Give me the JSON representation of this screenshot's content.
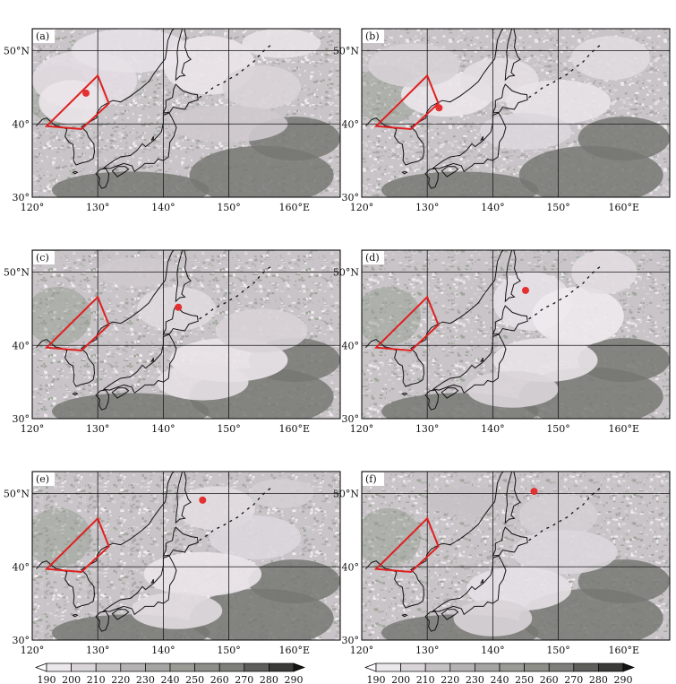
{
  "figure": {
    "lon_ticks": [
      "120°",
      "130°",
      "140°",
      "150°",
      "160°E"
    ],
    "lat_ticks": [
      "30°",
      "40°",
      "50°N"
    ],
    "panels": [
      {
        "label": "(a)",
        "storm_center": {
          "lon": 128.2,
          "lat": 44.2
        }
      },
      {
        "label": "(b)",
        "storm_center": {
          "lon": 131.8,
          "lat": 42.2
        }
      },
      {
        "label": "(c)",
        "storm_center": {
          "lon": 142.3,
          "lat": 45.2
        }
      },
      {
        "label": "(d)",
        "storm_center": {
          "lon": 145.0,
          "lat": 47.5
        }
      },
      {
        "label": "(e)",
        "storm_center": {
          "lon": 146.0,
          "lat": 49.1
        }
      },
      {
        "label": "(f)",
        "storm_center": {
          "lon": 146.3,
          "lat": 50.3
        }
      }
    ],
    "region_polygon": [
      [
        122.2,
        39.7
      ],
      [
        130.0,
        46.6
      ],
      [
        131.7,
        42.8
      ],
      [
        127.5,
        39.3
      ]
    ],
    "colorbar": {
      "ticks": [
        "190",
        "200",
        "210",
        "220",
        "230",
        "240",
        "250",
        "260",
        "270",
        "280",
        "290"
      ],
      "colors": [
        "#ffffff",
        "#ebe8eb",
        "#d8d4d8",
        "#c5c2c4",
        "#b4b2b3",
        "#a5a5a3",
        "#9a9b95",
        "#8d8e88",
        "#7e7f7a",
        "#5e5f5b",
        "#3a3a38",
        "#151515"
      ]
    },
    "colors": {
      "region_outline": "#e02020",
      "storm_center": "#e33030",
      "coastline": "#141414",
      "grid": "#1a1a1a",
      "cloud_bright": "#ece7ec",
      "ocean_warm": "#777873",
      "land_green": "#8f998a"
    }
  }
}
